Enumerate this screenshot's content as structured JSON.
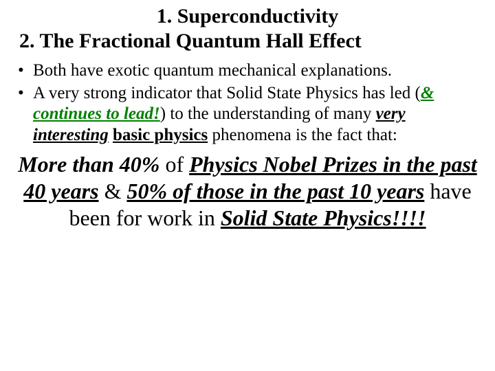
{
  "title1": "1. Superconductivity",
  "title2": "2. The Fractional Quantum Hall Effect",
  "bullets": {
    "b1": "Both have exotic quantum mechanical explanations.",
    "b2a": "A very strong indicator that Solid State Physics has led (",
    "b2green": "& continues to lead!",
    "b2b": ") to the understanding of many ",
    "b2c": "very interesting",
    "b2d": " ",
    "b2e": "basic physics",
    "b2f": " phenomena is the fact that:"
  },
  "conclusion": {
    "p1a": "More than 40%",
    "p1b": " of ",
    "p1c": "Physics Nobel Prizes in the past 40 years",
    "p1d": " & ",
    "p1e": "50% of those in the past 10 years",
    "p1f": " have been for work in ",
    "p1g": "Solid State Physics!!!!"
  },
  "colors": {
    "green": "#008000",
    "text": "#000000",
    "background": "#ffffff"
  },
  "fonts": {
    "family": "Times New Roman",
    "title_size_pt": 30,
    "body_size_pt": 25,
    "conclusion_size_pt": 32
  }
}
